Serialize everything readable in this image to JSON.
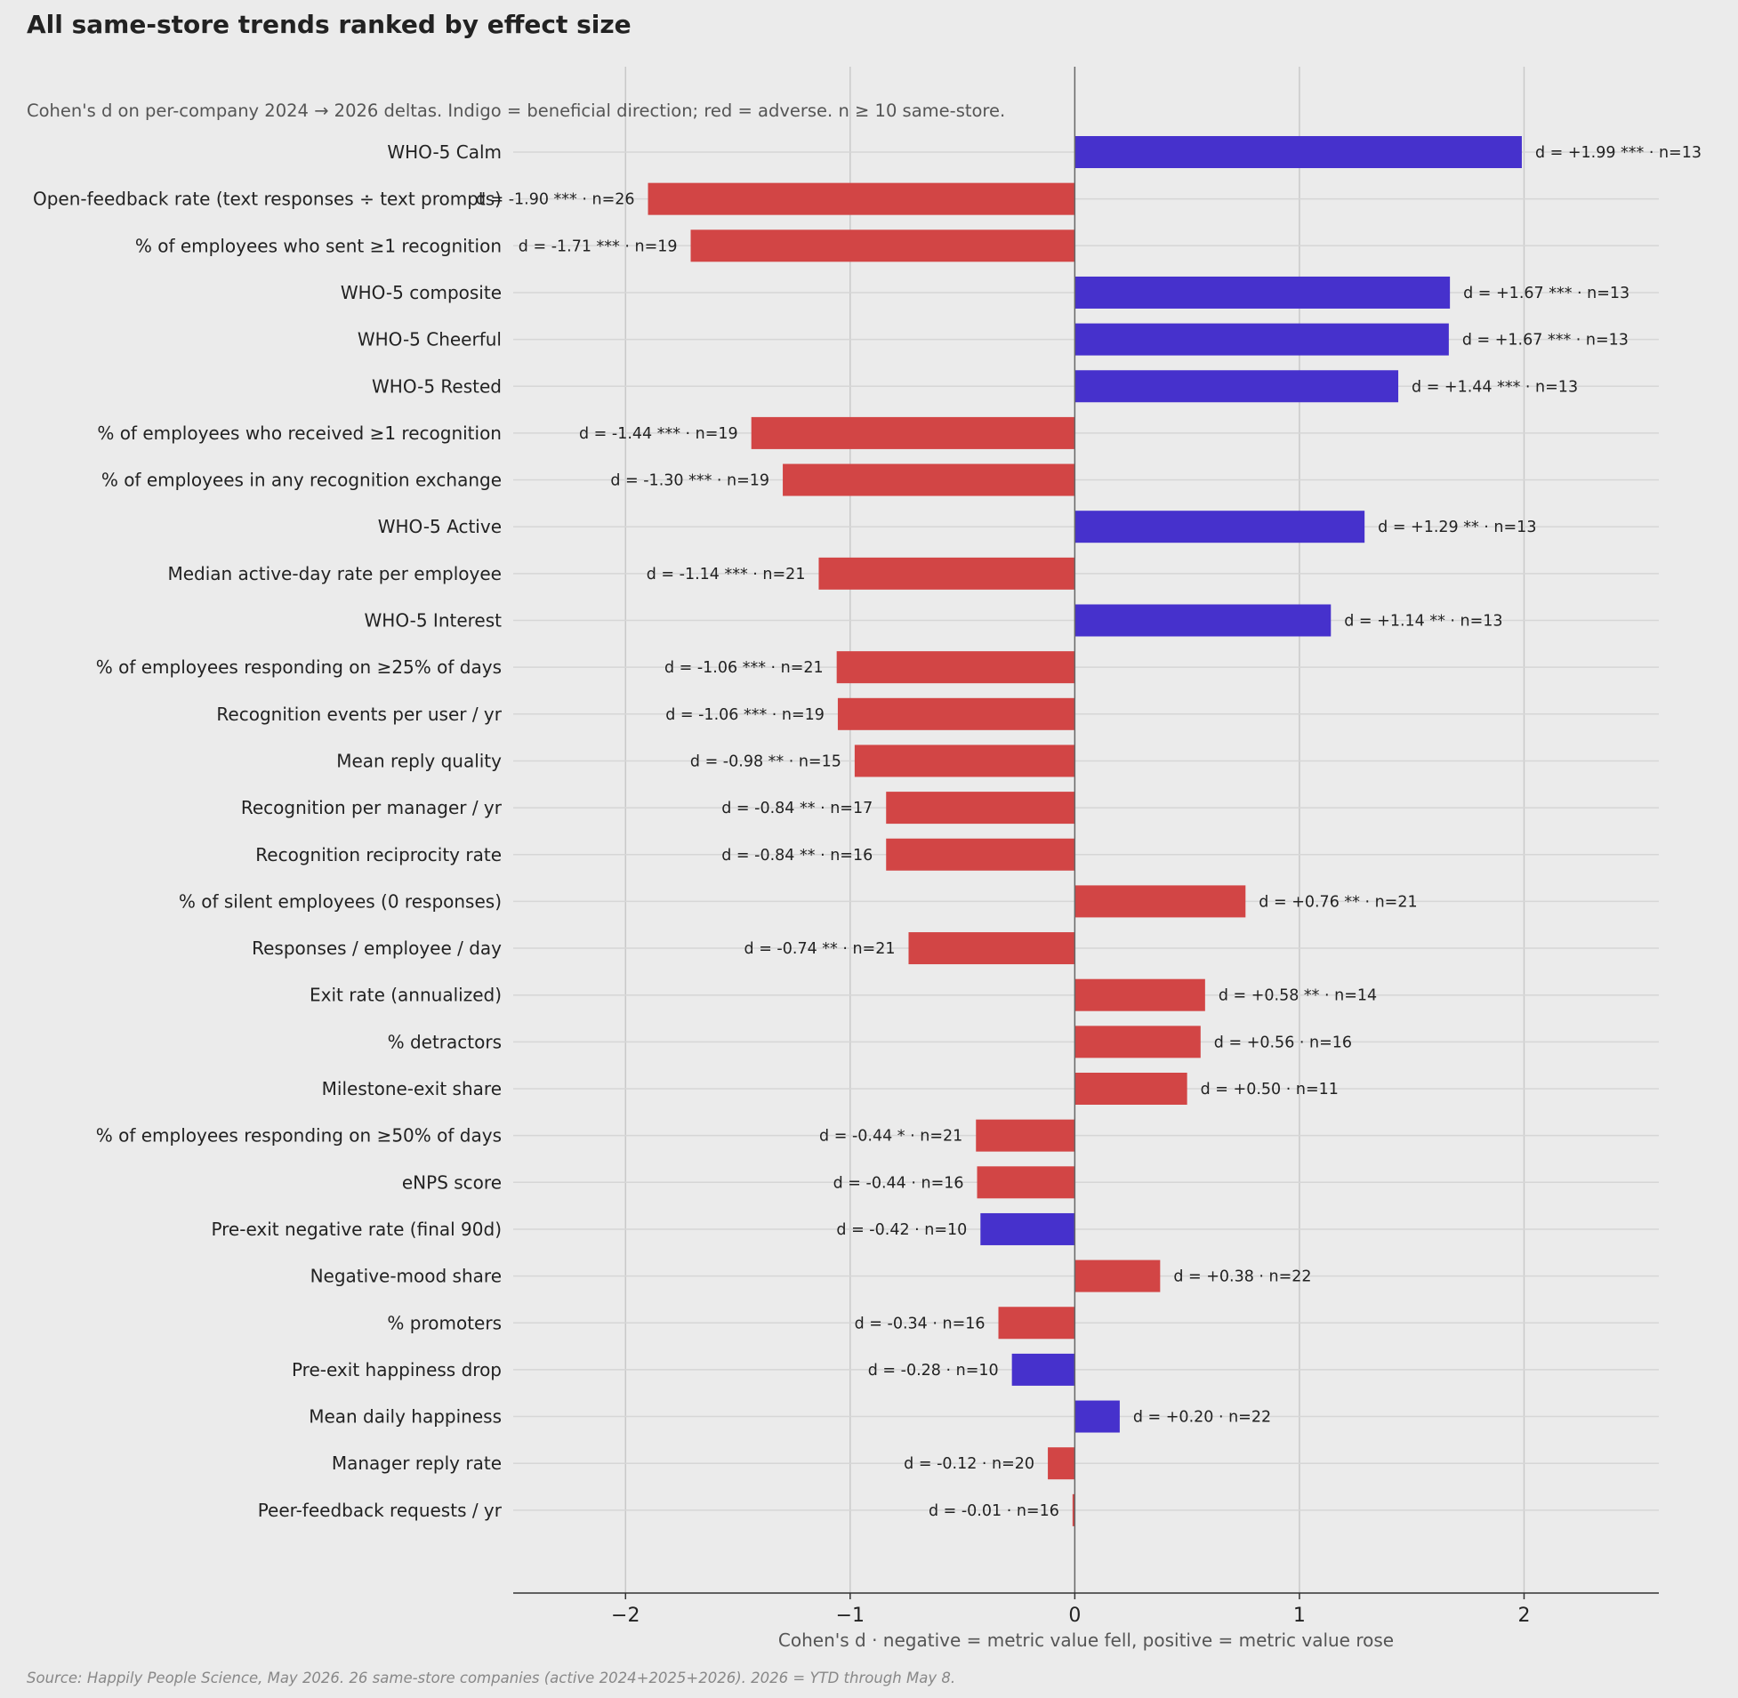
{
  "chart_data": {
    "type": "bar",
    "orientation": "horizontal",
    "title": "All same-store trends ranked by effect size",
    "subtitle": "Cohen's d on per-company 2024 → 2026 deltas. Indigo = beneficial direction; red = adverse. n ≥ 10 same-store.",
    "xlabel": "Cohen's d  ·  negative = metric value fell, positive = metric value rose",
    "ylabel": "",
    "xlim": [
      -2.5,
      2.6
    ],
    "xticks": [
      -2,
      -1,
      0,
      1,
      2
    ],
    "xtick_labels": [
      "−2",
      "−1",
      "0",
      "1",
      "2"
    ],
    "grid": true,
    "source": "Source: Happily People Science, May 2026. 26 same-store companies (active 2024+2025+2026). 2026 = YTD through May 8.",
    "colors": {
      "beneficial": "#4631cc",
      "adverse": "#d24545",
      "background": "#ebebeb",
      "grid": "#c9c9c9",
      "zero_line": "#666666"
    },
    "bars": [
      {
        "category": "WHO-5 Calm",
        "value": 1.99,
        "direction": "beneficial",
        "label": "d = +1.99 ***  ·  n=13"
      },
      {
        "category": "Open-feedback rate (text responses ÷ text prompts)",
        "value": -1.9,
        "direction": "adverse",
        "label": "d = -1.90 ***  ·  n=26"
      },
      {
        "category": "% of employees who sent ≥1 recognition",
        "value": -1.71,
        "direction": "adverse",
        "label": "d = -1.71 ***  ·  n=19"
      },
      {
        "category": "WHO-5 composite",
        "value": 1.67,
        "direction": "beneficial",
        "label": "d = +1.67 ***  ·  n=13"
      },
      {
        "category": "WHO-5 Cheerful",
        "value": 1.665,
        "direction": "beneficial",
        "label": "d = +1.67 ***  ·  n=13"
      },
      {
        "category": "WHO-5 Rested",
        "value": 1.44,
        "direction": "beneficial",
        "label": "d = +1.44 ***  ·  n=13"
      },
      {
        "category": "% of employees who received ≥1 recognition",
        "value": -1.44,
        "direction": "adverse",
        "label": "d = -1.44 ***  ·  n=19"
      },
      {
        "category": "% of employees in any recognition exchange",
        "value": -1.3,
        "direction": "adverse",
        "label": "d = -1.30 ***  ·  n=19"
      },
      {
        "category": "WHO-5 Active",
        "value": 1.29,
        "direction": "beneficial",
        "label": "d = +1.29 **  ·  n=13"
      },
      {
        "category": "Median active-day rate per employee",
        "value": -1.14,
        "direction": "adverse",
        "label": "d = -1.14 ***  ·  n=21"
      },
      {
        "category": "WHO-5 Interest",
        "value": 1.14,
        "direction": "beneficial",
        "label": "d = +1.14 **  ·  n=13"
      },
      {
        "category": "% of employees responding on ≥25% of days",
        "value": -1.06,
        "direction": "adverse",
        "label": "d = -1.06 ***  ·  n=21"
      },
      {
        "category": "Recognition events per user / yr",
        "value": -1.055,
        "direction": "adverse",
        "label": "d = -1.06 ***  ·  n=19"
      },
      {
        "category": "Mean reply quality",
        "value": -0.98,
        "direction": "adverse",
        "label": "d = -0.98 **  ·  n=15"
      },
      {
        "category": "Recognition per manager / yr",
        "value": -0.84,
        "direction": "adverse",
        "label": "d = -0.84 **  ·  n=17"
      },
      {
        "category": "Recognition reciprocity rate",
        "value": -0.84,
        "direction": "adverse",
        "label": "d = -0.84 **  ·  n=16"
      },
      {
        "category": "% of silent employees (0 responses)",
        "value": 0.76,
        "direction": "adverse",
        "label": "d = +0.76 **  ·  n=21"
      },
      {
        "category": "Responses / employee / day",
        "value": -0.74,
        "direction": "adverse",
        "label": "d = -0.74 **  ·  n=21"
      },
      {
        "category": "Exit rate (annualized)",
        "value": 0.58,
        "direction": "adverse",
        "label": "d = +0.58 **  ·  n=14"
      },
      {
        "category": "% detractors",
        "value": 0.56,
        "direction": "adverse",
        "label": "d = +0.56  ·  n=16"
      },
      {
        "category": "Milestone-exit share",
        "value": 0.5,
        "direction": "adverse",
        "label": "d = +0.50  ·  n=11"
      },
      {
        "category": "% of employees responding on ≥50% of days",
        "value": -0.44,
        "direction": "adverse",
        "label": "d = -0.44 *  ·  n=21"
      },
      {
        "category": "eNPS score",
        "value": -0.435,
        "direction": "adverse",
        "label": "d = -0.44  ·  n=16"
      },
      {
        "category": "Pre-exit negative rate (final 90d)",
        "value": -0.42,
        "direction": "beneficial",
        "label": "d = -0.42  ·  n=10"
      },
      {
        "category": "Negative-mood share",
        "value": 0.38,
        "direction": "adverse",
        "label": "d = +0.38  ·  n=22"
      },
      {
        "category": "% promoters",
        "value": -0.34,
        "direction": "adverse",
        "label": "d = -0.34  ·  n=16"
      },
      {
        "category": "Pre-exit happiness drop",
        "value": -0.28,
        "direction": "beneficial",
        "label": "d = -0.28  ·  n=10"
      },
      {
        "category": "Mean daily happiness",
        "value": 0.2,
        "direction": "beneficial",
        "label": "d = +0.20  ·  n=22"
      },
      {
        "category": "Manager reply rate",
        "value": -0.12,
        "direction": "adverse",
        "label": "d = -0.12  ·  n=20"
      },
      {
        "category": "Peer-feedback requests / yr",
        "value": -0.01,
        "direction": "adverse",
        "label": "d = -0.01  ·  n=16"
      }
    ]
  }
}
